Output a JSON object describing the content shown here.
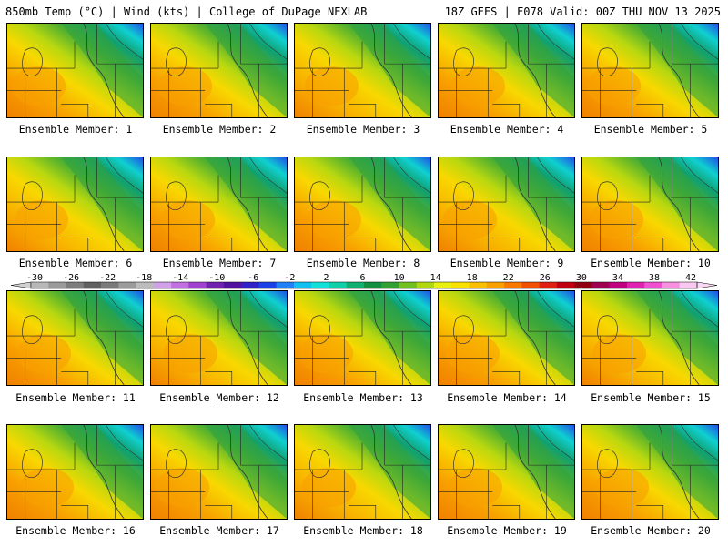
{
  "header": {
    "left": "850mb Temp (°C) | Wind (kts) | College of DuPage NEXLAB",
    "right": "18Z GEFS | F078 Valid: 00Z THU NOV 13 2025"
  },
  "panel_label_prefix": "Ensemble Member: ",
  "members": [
    1,
    2,
    3,
    4,
    5,
    6,
    7,
    8,
    9,
    10,
    11,
    12,
    13,
    14,
    15,
    16,
    17,
    18,
    19,
    20
  ],
  "colorbar": {
    "labels": [
      "-30",
      "-26",
      "-22",
      "-18",
      "-14",
      "-10",
      "-6",
      "-2",
      "2",
      "6",
      "10",
      "14",
      "18",
      "22",
      "26",
      "30",
      "34",
      "38",
      "42"
    ],
    "colors": [
      "#b8b8b8",
      "#9a9a9a",
      "#7d7d7d",
      "#606060",
      "#7a7a7a",
      "#9b9b9b",
      "#bcbcbc",
      "#d0a0e8",
      "#c070e0",
      "#a040d0",
      "#7020b0",
      "#5010a0",
      "#3020c8",
      "#1a40e8",
      "#2080f8",
      "#10c0f0",
      "#10e0d8",
      "#10d0a8",
      "#10b070",
      "#109040",
      "#30a030",
      "#70c020",
      "#b0d810",
      "#e8f010",
      "#f8e000",
      "#f8c000",
      "#f8a000",
      "#f87800",
      "#f05000",
      "#e02010",
      "#c00010",
      "#900010",
      "#a00050",
      "#c00080",
      "#e020b0",
      "#f050d0",
      "#f890e0",
      "#f8c8f0"
    ]
  }
}
